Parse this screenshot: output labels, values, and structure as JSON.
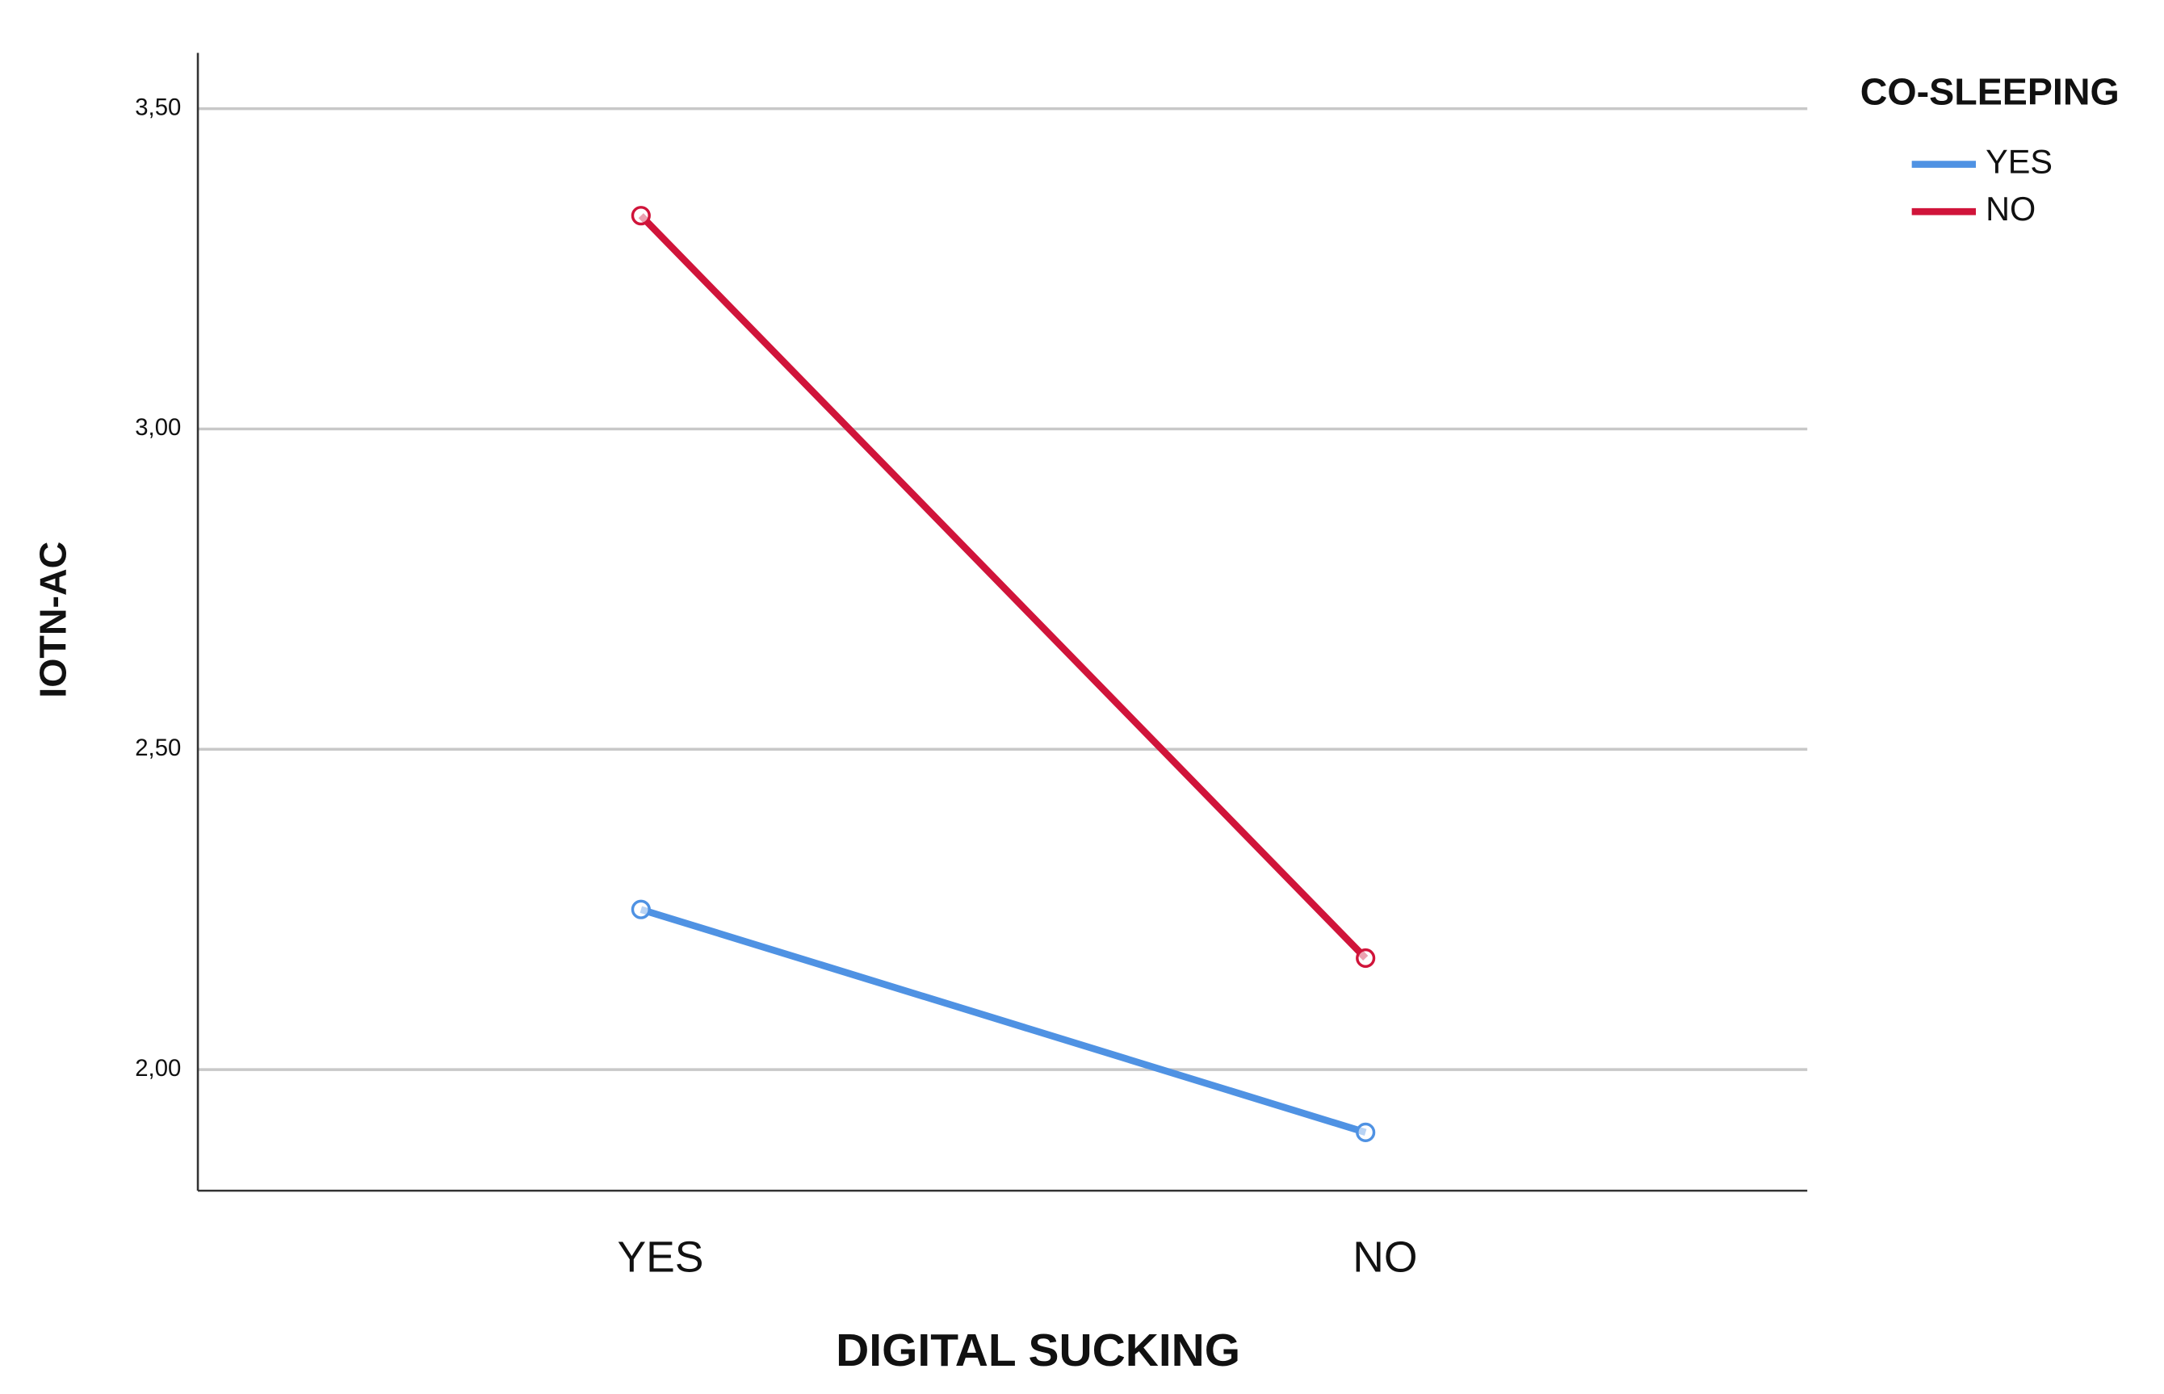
{
  "chart_data": {
    "type": "line",
    "x_label": "DIGITAL SUCKING",
    "y_label": "IOTN-AC",
    "legend_title": "CO-SLEEPING",
    "legend_position": "top-right",
    "grid": true,
    "categories": [
      "YES",
      "NO"
    ],
    "series": [
      {
        "name": "YES",
        "color": "#4f92e3",
        "values": [
          2.25,
          1.902
        ]
      },
      {
        "name": "NO",
        "color": "#d0143a",
        "values": [
          3.333,
          2.174
        ]
      }
    ],
    "ylim": [
      1.811,
      3.587
    ],
    "yticks": [
      {
        "value": 2.0,
        "label": "2,00"
      },
      {
        "value": 2.5,
        "label": "2,50"
      },
      {
        "value": 3.0,
        "label": "3,00"
      },
      {
        "value": 3.5,
        "label": "3,50"
      }
    ]
  }
}
